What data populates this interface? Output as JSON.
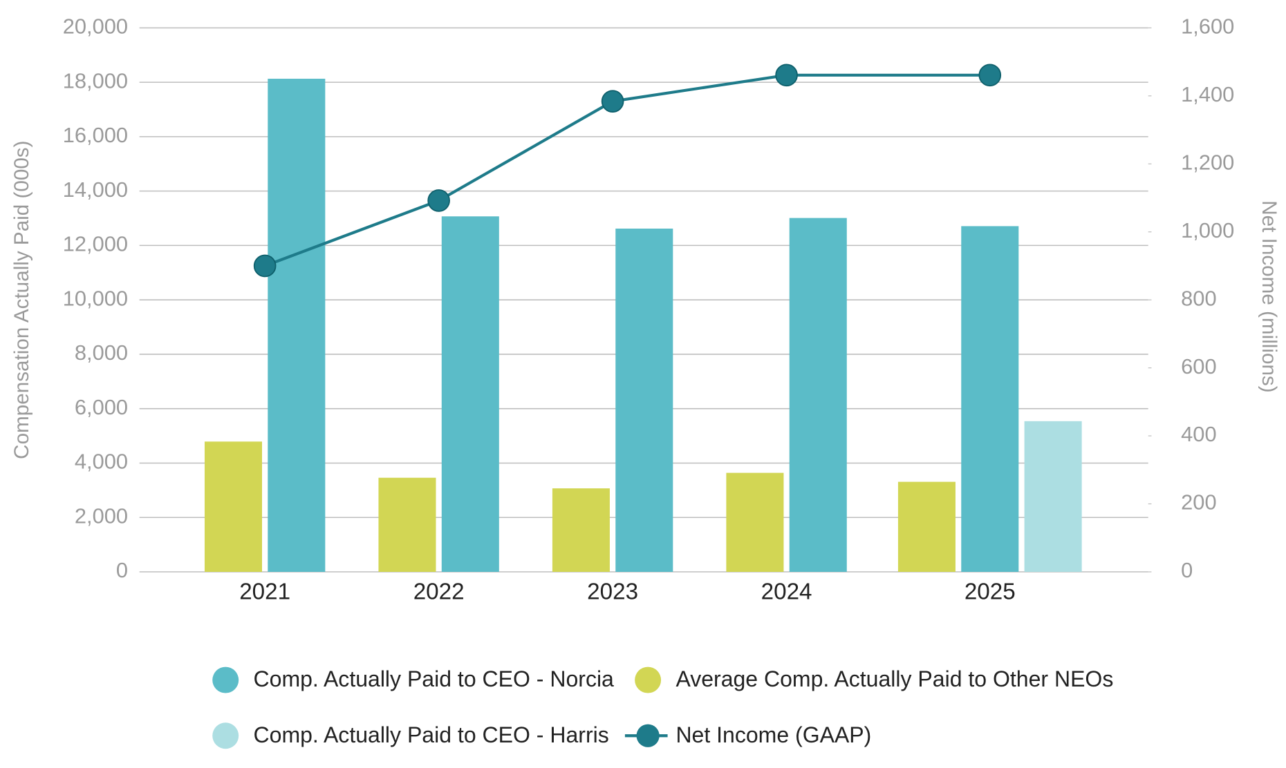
{
  "chart_data": {
    "type": "bar",
    "y_label": "Compensation Actually Paid (000s)",
    "y2_label": "Net Income (millions)",
    "categories": [
      "2021",
      "2022",
      "2023",
      "2024",
      "2025"
    ],
    "series": [
      {
        "name": "Average Comp. Actually Paid to Other NEOs",
        "color": "#d2d654",
        "values": [
          4790,
          3460,
          3070,
          3640,
          3310
        ]
      },
      {
        "name": "Comp. Actually Paid to CEO - Norcia",
        "color": "#5bbcc8",
        "values": [
          18130,
          13070,
          12620,
          13010,
          12710
        ]
      },
      {
        "name": "Comp. Actually Paid to CEO - Harris",
        "color": "#acdee2",
        "values": [
          null,
          null,
          null,
          null,
          5540
        ]
      },
      {
        "name": "Net Income (GAAP)",
        "color": "#1e7b8a",
        "type": "line",
        "axis": "y2",
        "values": [
          900,
          1092,
          1384,
          1461,
          1461
        ]
      }
    ],
    "ylim": [
      0,
      20000
    ],
    "yticks": [
      0,
      {
        "value": 2000,
        "label": "2,000"
      },
      {
        "value": 4000,
        "label": "4,000"
      },
      {
        "value": 6000,
        "label": "6,000"
      },
      {
        "value": 8000,
        "label": "8,000"
      },
      {
        "value": 10000,
        "label": "10,000"
      },
      {
        "value": 12000,
        "label": "12,000"
      },
      {
        "value": 14000,
        "label": "14,000"
      },
      {
        "value": 16000,
        "label": "16,000"
      },
      {
        "value": 18000,
        "label": "18,000"
      },
      {
        "value": 20000,
        "label": "20,000"
      }
    ],
    "y2lim": [
      0,
      1600
    ],
    "y2ticks": [
      0,
      200,
      400,
      600,
      800,
      {
        "value": 1000,
        "label": "1,000"
      },
      {
        "value": 1200,
        "label": "1,200"
      },
      {
        "value": 1400,
        "label": "1,400"
      },
      {
        "value": 1600,
        "label": "1,600"
      }
    ],
    "grid": true
  }
}
